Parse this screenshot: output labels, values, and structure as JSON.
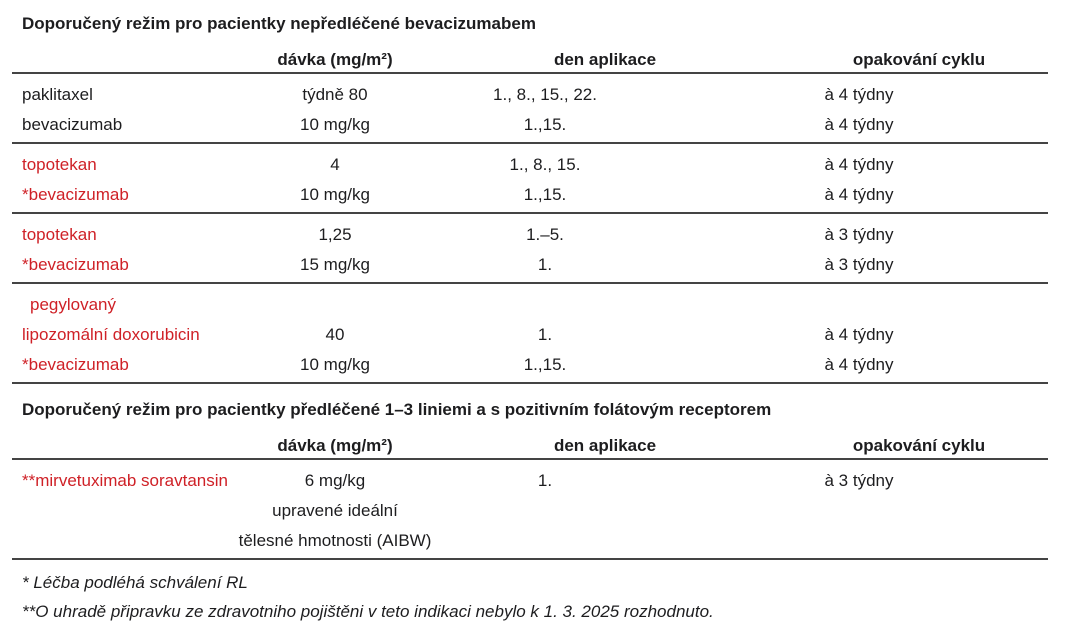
{
  "colors": {
    "drug_highlight_red": "#cf2127",
    "text_black": "#1d1d1f",
    "rule_gray": "#444444"
  },
  "section1": {
    "title": "Doporučený režim pro pacientky nepředléčené bevacizumabem",
    "headers": {
      "dose": "dávka (mg/m²)",
      "day": "den aplikace",
      "cycle": "opakování cyklu"
    },
    "groups": [
      {
        "rows": [
          {
            "drug": "paklitaxel",
            "dose": "týdně 80",
            "day": "1., 8., 15., 22.",
            "cycle": "à 4 týdny"
          },
          {
            "drug": "bevacizumab",
            "dose": "10 mg/kg",
            "day": "1.,15.",
            "cycle": "à 4 týdny"
          }
        ]
      },
      {
        "rows": [
          {
            "drug": "topotekan",
            "dose": "4",
            "day": "1., 8., 15.",
            "cycle": "à 4 týdny"
          },
          {
            "drug": "*bevacizumab",
            "dose": "10 mg/kg",
            "day": "1.,15.",
            "cycle": "à 4 týdny"
          }
        ]
      },
      {
        "rows": [
          {
            "drug": "topotekan",
            "dose": "1,25",
            "day": "1.–5.",
            "cycle": "à 3 týdny"
          },
          {
            "drug": "*bevacizumab",
            "dose": "15 mg/kg",
            "day": "1.",
            "cycle": "à 3 týdny"
          }
        ]
      },
      {
        "rows": [
          {
            "drug": "pegylovaný",
            "dose": "",
            "day": "",
            "cycle": ""
          },
          {
            "drug": "lipozomální doxorubicin",
            "dose": "40",
            "day": "1.",
            "cycle": "à 4 týdny"
          },
          {
            "drug": "*bevacizumab",
            "dose": "10 mg/kg",
            "day": "1.,15.",
            "cycle": "à 4 týdny"
          }
        ]
      }
    ]
  },
  "section2": {
    "title": "Doporučený režim pro pacientky předléčené 1–3 liniemi a s pozitivním folátovým receptorem",
    "headers": {
      "dose": "dávka (mg/m²)",
      "day": "den aplikace",
      "cycle": "opakování cyklu"
    },
    "groups": [
      {
        "rows": [
          {
            "drug": "**mirvetuximab soravtansin",
            "dose": "6 mg/kg",
            "day": "1.",
            "cycle": "à 3 týdny"
          },
          {
            "drug": "",
            "dose": "upravené ideální",
            "day": "",
            "cycle": ""
          },
          {
            "drug": "",
            "dose": "tělesné hmotnosti (AIBW)",
            "day": "",
            "cycle": ""
          }
        ]
      }
    ]
  },
  "footnotes": [
    "* Léčba podléhá schválení RL",
    "**O uhradě připravku ze zdravotniho pojištěni v teto indikaci nebylo k 1. 3. 2025 rozhodnuto."
  ]
}
